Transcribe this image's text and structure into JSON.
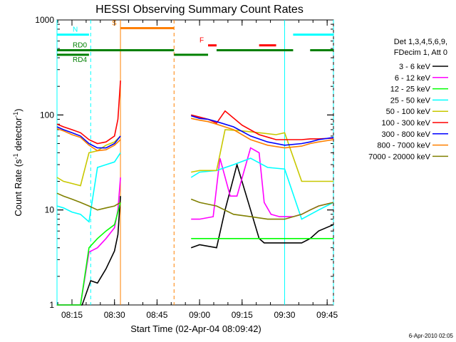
{
  "chart_data": {
    "type": "line",
    "title": "HESSI Observing Summary Count Rates",
    "xlabel": "Start Time (02-Apr-04 08:09:42)",
    "ylabel": "Count Rate (s",
    "ylabel_sup1": "-1",
    "ylabel_mid": " detector",
    "ylabel_sup2": "-1",
    "ylabel_end": ")",
    "yscale": "log",
    "ylim": [
      1,
      1000
    ],
    "xlim": [
      8.162,
      9.787
    ],
    "x_unit": "hours",
    "x_ticks": [
      {
        "value": 8.25,
        "label": "08:15"
      },
      {
        "value": 8.5,
        "label": "08:30"
      },
      {
        "value": 8.75,
        "label": "08:45"
      },
      {
        "value": 9.0,
        "label": "09:00"
      },
      {
        "value": 9.25,
        "label": "09:15"
      },
      {
        "value": 9.5,
        "label": "09:30"
      },
      {
        "value": 9.75,
        "label": "09:45"
      }
    ],
    "y_ticks": [
      {
        "value": 1,
        "label": "1"
      },
      {
        "value": 10,
        "label": "10"
      },
      {
        "value": 100,
        "label": "100"
      },
      {
        "value": 1000,
        "label": "1000"
      }
    ],
    "legend_header": [
      "Det 1,3,4,5,6,9,",
      "FDecim 1, Att 0"
    ],
    "legend_placement": "right",
    "series": [
      {
        "name": "3 - 6 keV",
        "color": "#000000",
        "x": [
          8.162,
          8.25,
          8.31,
          8.36,
          8.4,
          8.45,
          8.5,
          8.52,
          8.535,
          8.85,
          8.95,
          9.0,
          9.1,
          9.15,
          9.22,
          9.3,
          9.35,
          9.38,
          9.42,
          9.47,
          9.55,
          9.6,
          9.65,
          9.7,
          9.787
        ],
        "y": [
          1.0,
          1.0,
          1.0,
          1.8,
          1.7,
          2.4,
          3.7,
          5.5,
          14,
          null,
          4.0,
          4.3,
          4.0,
          10,
          30,
          10,
          5.0,
          4.5,
          4.5,
          4.5,
          4.5,
          4.5,
          5.0,
          6.0,
          7.0
        ]
      },
      {
        "name": "6 - 12 keV",
        "color": "#ff00ff",
        "x": [
          8.162,
          8.25,
          8.3,
          8.35,
          8.4,
          8.45,
          8.5,
          8.52,
          8.535,
          8.85,
          8.95,
          9.0,
          9.08,
          9.12,
          9.18,
          9.22,
          9.3,
          9.35,
          9.38,
          9.42,
          9.47,
          9.55,
          9.6,
          9.65,
          9.7,
          9.787
        ],
        "y": [
          1.0,
          1.0,
          1.0,
          3.6,
          4.0,
          5.0,
          6.5,
          10,
          22,
          null,
          8.0,
          8.0,
          8.5,
          35,
          14,
          14,
          45,
          40,
          12,
          9.0,
          8.5,
          8.5,
          9.0,
          10,
          11,
          12
        ]
      },
      {
        "name": "12 - 25 keV",
        "color": "#00ff00",
        "x": [
          8.162,
          8.2,
          8.25,
          8.3,
          8.35,
          8.4,
          8.45,
          8.5,
          8.535,
          8.85,
          8.95,
          9.0,
          9.1,
          9.2,
          9.3,
          9.4,
          9.5,
          9.6,
          9.7,
          9.787
        ],
        "y": [
          1.0,
          1.0,
          1.0,
          1.0,
          4.0,
          5.0,
          6.0,
          7.0,
          12,
          null,
          5.0,
          5.0,
          5.0,
          5.0,
          5.0,
          5.0,
          5.0,
          5.0,
          5.0,
          5.0
        ]
      },
      {
        "name": "25 - 50 keV",
        "color": "#00ffff",
        "x": [
          8.162,
          8.2,
          8.25,
          8.3,
          8.35,
          8.4,
          8.45,
          8.5,
          8.535,
          8.85,
          8.95,
          9.0,
          9.1,
          9.2,
          9.3,
          9.4,
          9.5,
          9.6,
          9.7,
          9.787
        ],
        "y": [
          11,
          10.5,
          9.5,
          9.0,
          7.5,
          28,
          30,
          32,
          40,
          null,
          22,
          25,
          26,
          30,
          35,
          28,
          27,
          8.0,
          10,
          12
        ]
      },
      {
        "name": "50 - 100 keV",
        "color": "#c8c800",
        "x": [
          8.162,
          8.2,
          8.25,
          8.3,
          8.35,
          8.4,
          8.45,
          8.5,
          8.535,
          8.85,
          8.95,
          9.0,
          9.1,
          9.15,
          9.25,
          9.35,
          9.45,
          9.5,
          9.6,
          9.787
        ],
        "y": [
          22,
          20,
          19,
          18,
          40,
          42,
          48,
          52,
          60,
          null,
          25,
          26,
          26,
          70,
          68,
          65,
          62,
          65,
          20,
          20
        ]
      },
      {
        "name": "100 - 300 keV",
        "color": "#ff0000",
        "x": [
          8.162,
          8.2,
          8.25,
          8.3,
          8.35,
          8.4,
          8.45,
          8.5,
          8.52,
          8.535,
          8.85,
          8.95,
          9.0,
          9.05,
          9.1,
          9.15,
          9.25,
          9.35,
          9.45,
          9.55,
          9.6,
          9.65,
          9.7,
          9.787
        ],
        "y": [
          80,
          75,
          70,
          65,
          55,
          50,
          52,
          60,
          90,
          230,
          null,
          100,
          95,
          90,
          82,
          110,
          78,
          62,
          55,
          55,
          55,
          56,
          56,
          57
        ]
      },
      {
        "name": "300 - 800 keV",
        "color": "#0000ff",
        "x": [
          8.162,
          8.2,
          8.25,
          8.3,
          8.35,
          8.4,
          8.45,
          8.5,
          8.535,
          8.85,
          8.95,
          9.0,
          9.05,
          9.1,
          9.2,
          9.3,
          9.4,
          9.5,
          9.6,
          9.65,
          9.7,
          9.787
        ],
        "y": [
          75,
          70,
          65,
          60,
          50,
          45,
          45,
          50,
          60,
          null,
          98,
          92,
          90,
          85,
          75,
          60,
          52,
          48,
          50,
          52,
          55,
          58
        ]
      },
      {
        "name": "800 - 7000 keV",
        "color": "#ff8000",
        "x": [
          8.162,
          8.2,
          8.25,
          8.3,
          8.35,
          8.4,
          8.45,
          8.5,
          8.535,
          8.85,
          8.95,
          9.0,
          9.05,
          9.1,
          9.2,
          9.3,
          9.4,
          9.5,
          9.6,
          9.65,
          9.7,
          9.787
        ],
        "y": [
          72,
          68,
          62,
          58,
          48,
          42,
          43,
          48,
          55,
          null,
          92,
          88,
          85,
          80,
          70,
          55,
          48,
          45,
          47,
          50,
          52,
          55
        ]
      },
      {
        "name": "7000 - 20000 keV",
        "color": "#808000",
        "x": [
          8.162,
          8.2,
          8.25,
          8.3,
          8.35,
          8.4,
          8.45,
          8.5,
          8.535,
          8.85,
          8.95,
          9.0,
          9.05,
          9.1,
          9.2,
          9.3,
          9.4,
          9.5,
          9.6,
          9.65,
          9.7,
          9.787
        ],
        "y": [
          15,
          14,
          13,
          12,
          11,
          10,
          10.5,
          11,
          12,
          null,
          13,
          12,
          11.5,
          11,
          9.0,
          8.5,
          8.0,
          8.0,
          9.0,
          10,
          11,
          12
        ]
      }
    ],
    "annotations": {
      "flags": [
        {
          "label": "N",
          "color": "#00ffff",
          "y": 700,
          "segments": [
            [
              8.162,
              8.35
            ],
            [
              9.55,
              9.787
            ]
          ]
        },
        {
          "label": "S",
          "color": "#ff8000",
          "y": 820,
          "segments": [
            [
              8.535,
              8.85
            ]
          ]
        },
        {
          "label": "F",
          "color": "#ff0000",
          "y": 540,
          "segments": [
            [
              9.05,
              9.1
            ],
            [
              9.35,
              9.45
            ]
          ]
        },
        {
          "label": "RD0",
          "color": "#008000",
          "y": 480,
          "segments": [
            [
              8.162,
              8.85
            ],
            [
              9.1,
              9.55
            ],
            [
              9.65,
              9.787
            ]
          ]
        },
        {
          "label": "RD4",
          "color": "#008000",
          "y": 430,
          "segments": [
            [
              8.162,
              8.35
            ],
            [
              8.85,
              9.05
            ]
          ]
        }
      ],
      "vlines": [
        {
          "x": 8.162,
          "color": "#00ffff",
          "dash": false
        },
        {
          "x": 8.36,
          "color": "#00ffff",
          "dash": true
        },
        {
          "x": 8.535,
          "color": "#ff8000",
          "dash": false
        },
        {
          "x": 8.85,
          "color": "#ff8000",
          "dash": true
        },
        {
          "x": 9.5,
          "color": "#00ffff",
          "dash": false
        },
        {
          "x": 9.787,
          "color": "#00ffff",
          "dash": true
        }
      ]
    },
    "footer_timestamp": "6-Apr-2010 02:05"
  }
}
